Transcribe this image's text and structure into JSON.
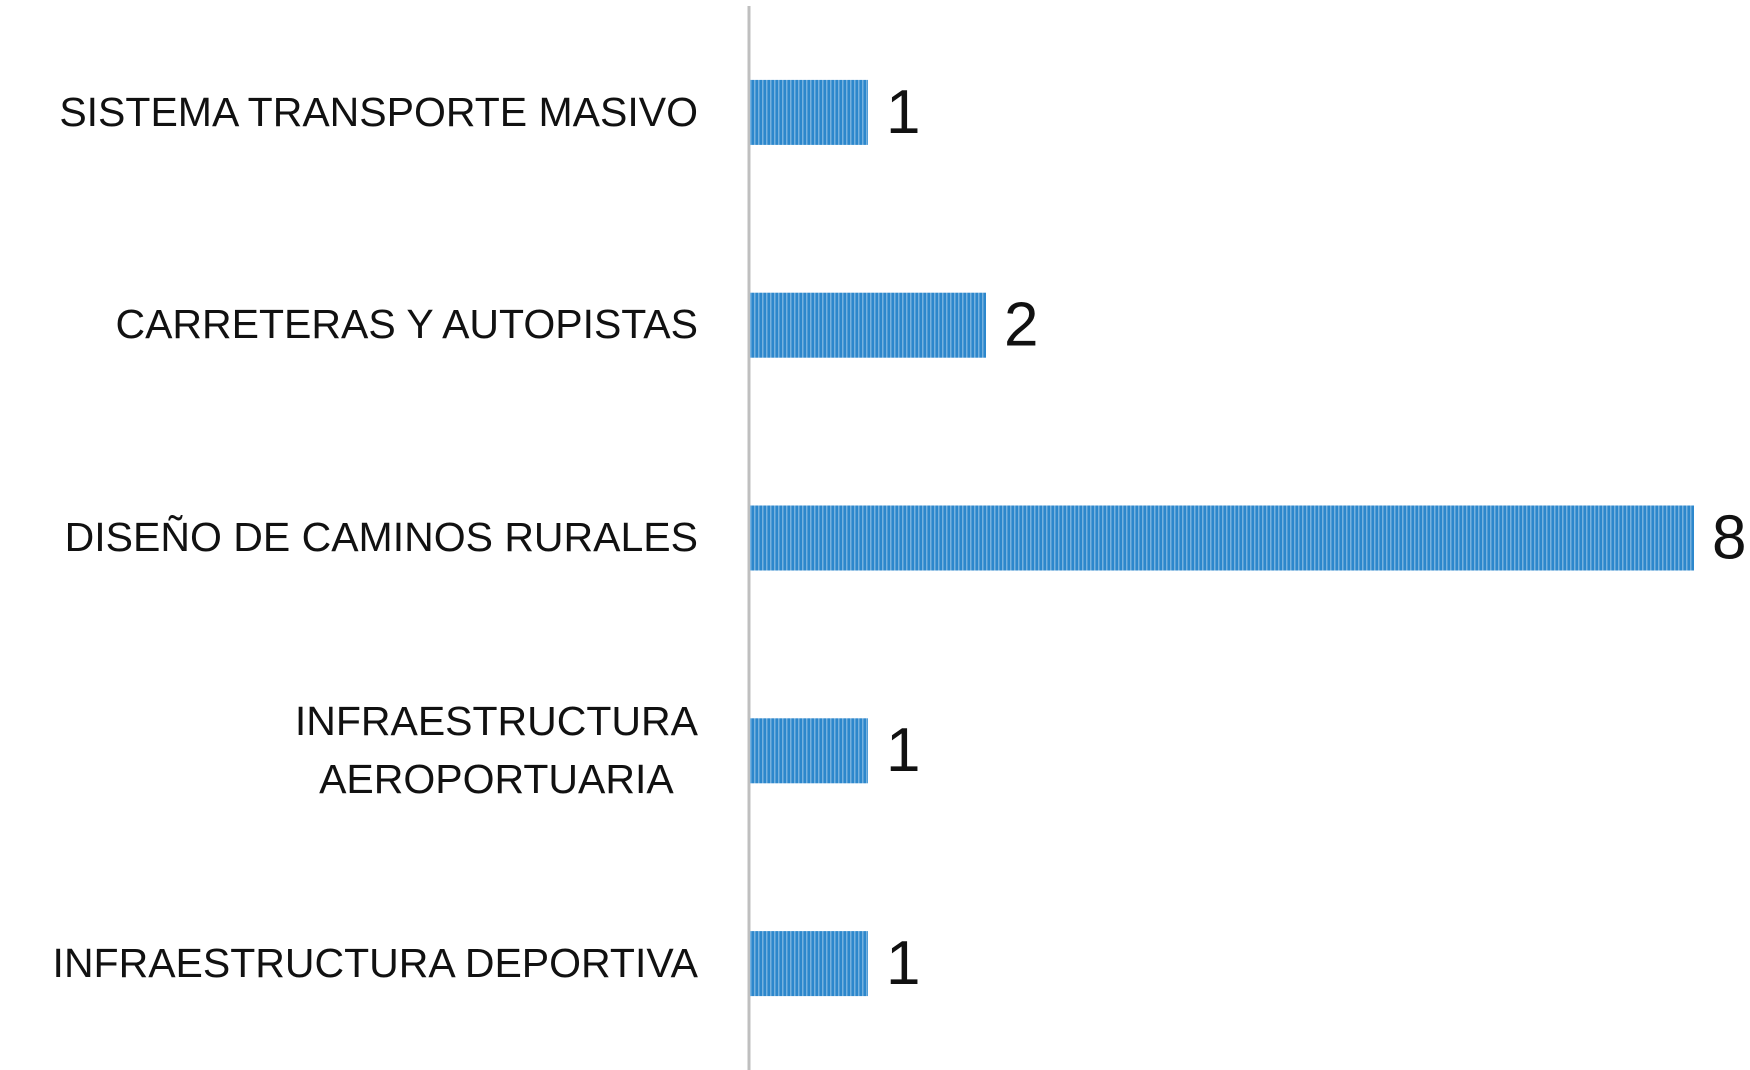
{
  "chart_data": {
    "type": "bar",
    "orientation": "horizontal",
    "categories": [
      "SISTEMA TRANSPORTE MASIVO",
      "CARRETERAS Y AUTOPISTAS",
      "DISEÑO DE CAMINOS RURALES",
      "INFRAESTRUCTURA\nAEROPORTUARIA",
      "INFRAESTRUCTURA DEPORTIVA"
    ],
    "values": [
      1,
      2,
      8,
      1,
      1
    ],
    "color": "#2c87cc",
    "xlim": [
      0,
      8
    ]
  }
}
